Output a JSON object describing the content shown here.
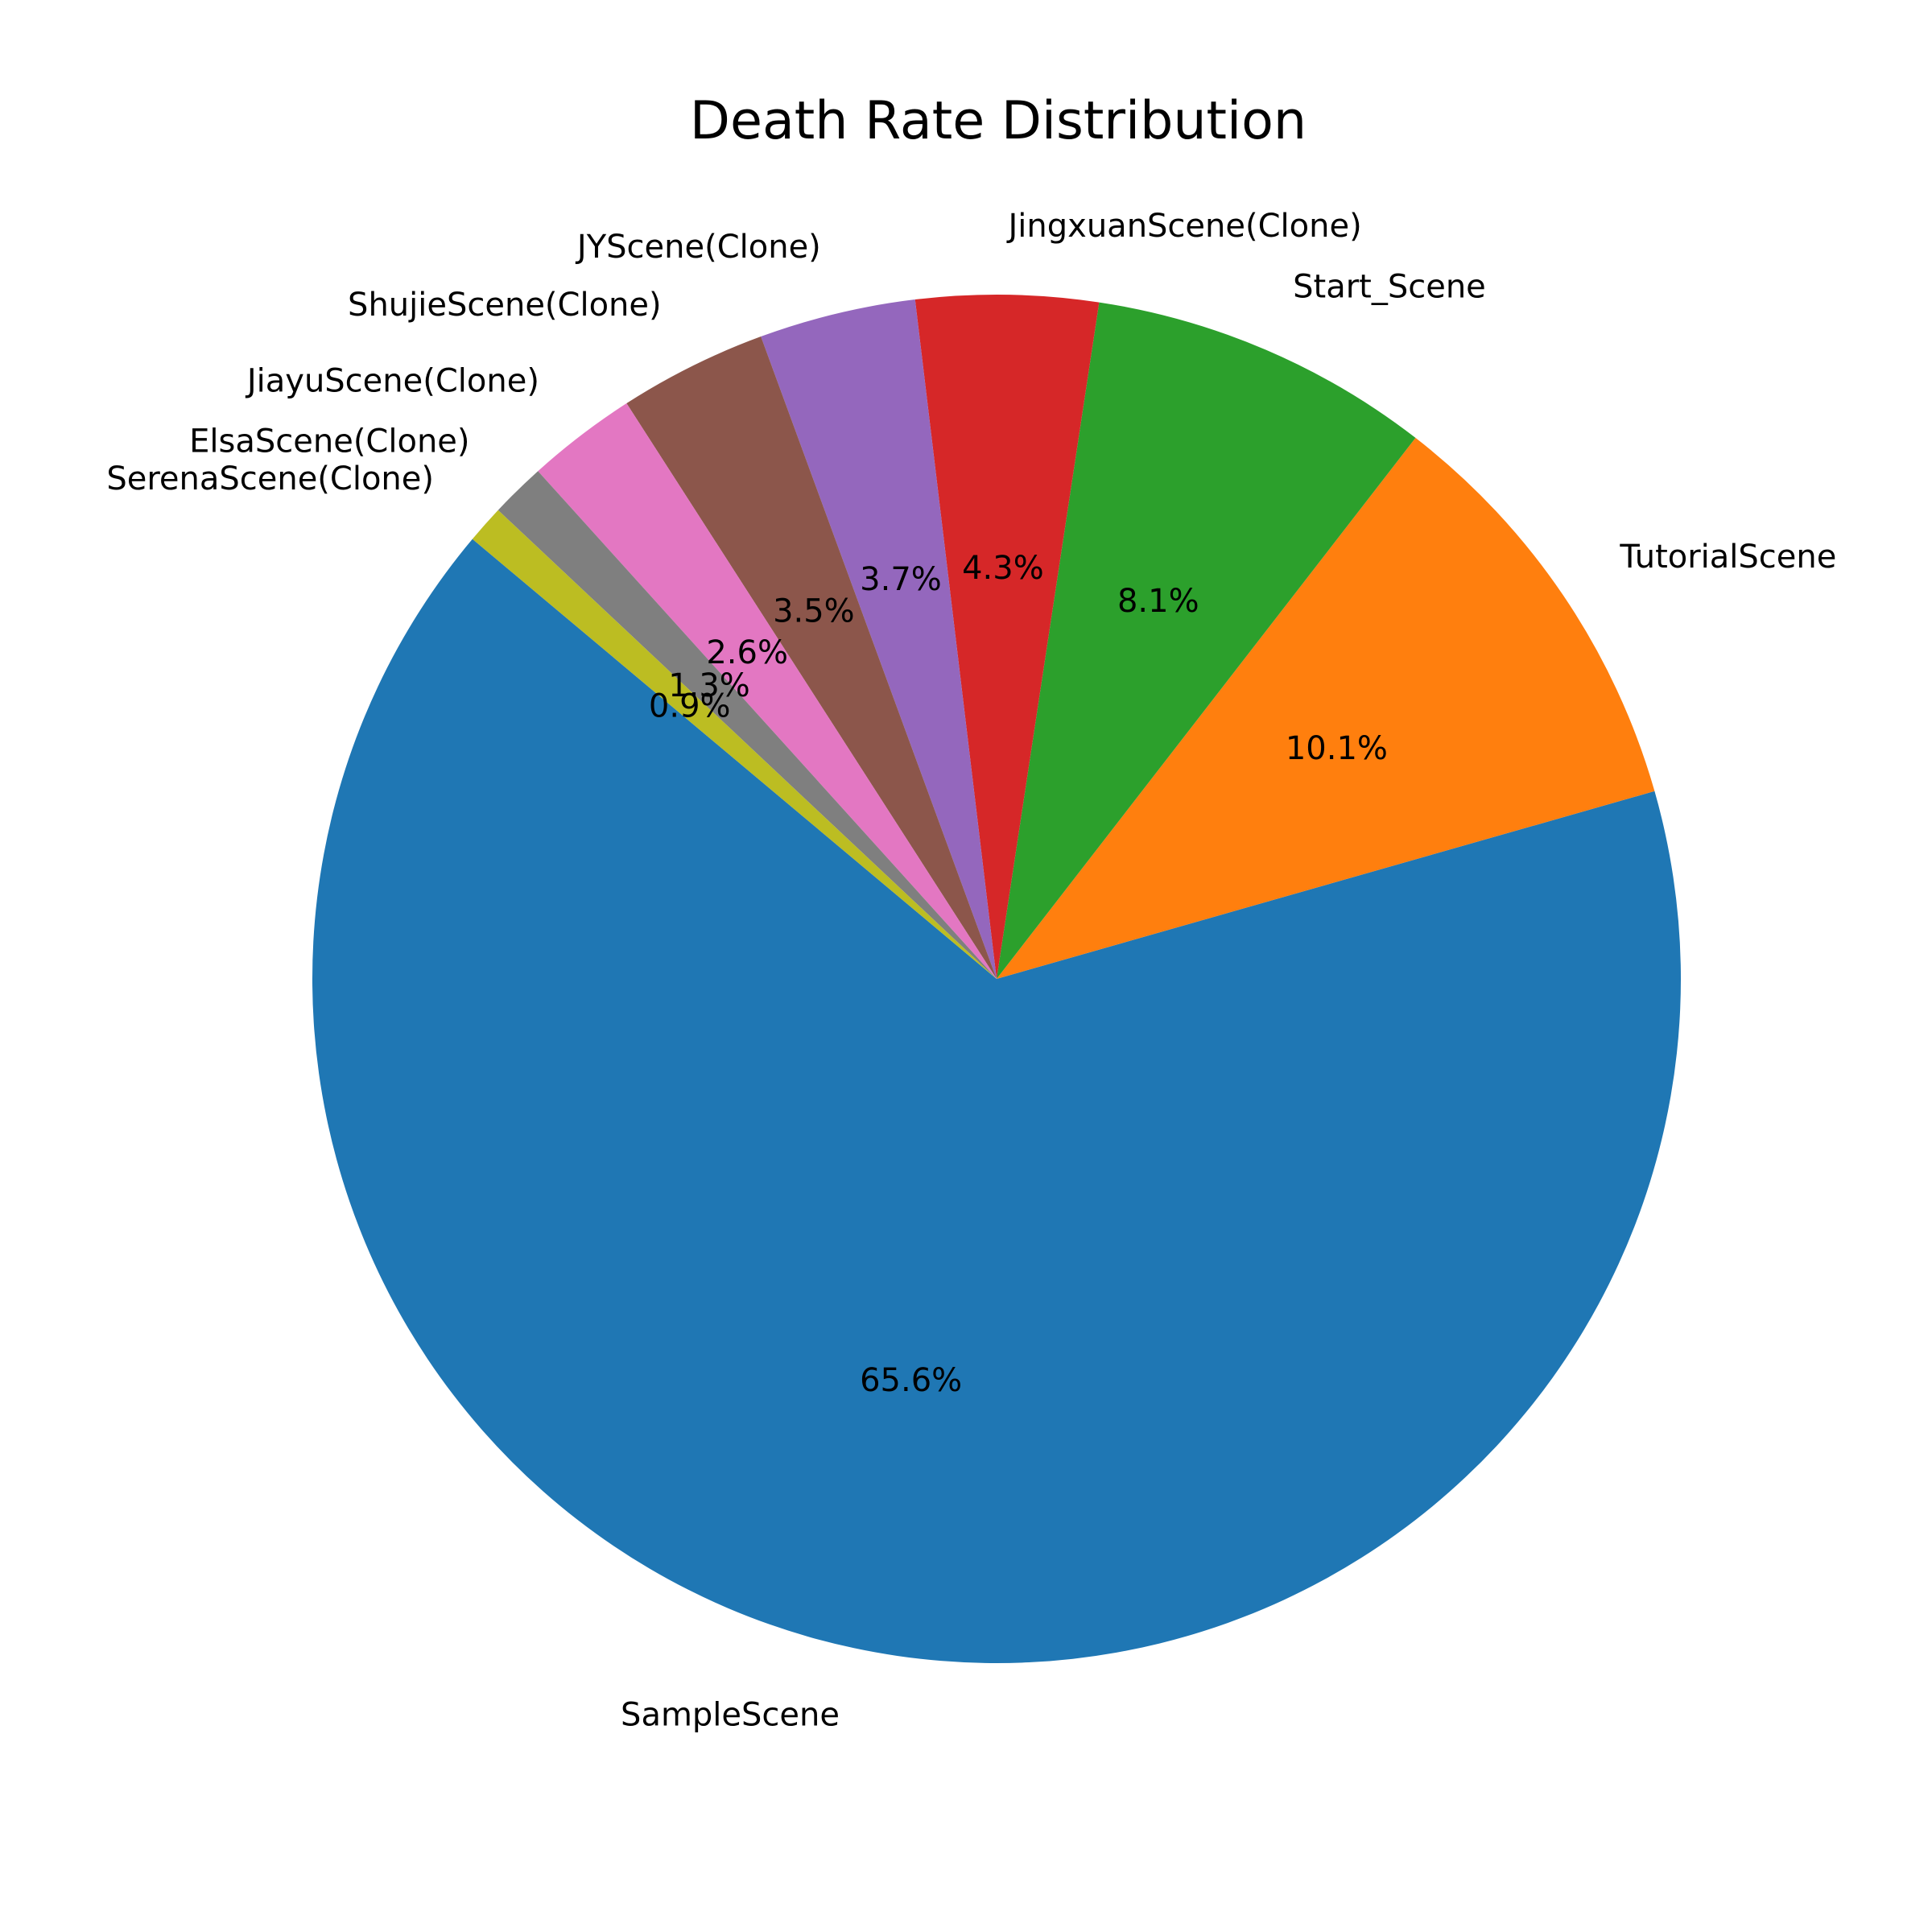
{
  "chart_data": {
    "type": "pie",
    "title": "Death Rate Distribution",
    "labels": [
      "SampleScene",
      "TutorialScene",
      "Start_Scene",
      "JingxuanScene(Clone)",
      "JYScene(Clone)",
      "ShujieScene(Clone)",
      "JiayuScene(Clone)",
      "ElsaScene(Clone)",
      "SerenaScene(Clone)"
    ],
    "values": [
      65.6,
      10.1,
      8.1,
      4.3,
      3.7,
      3.5,
      2.6,
      1.3,
      0.9
    ],
    "value_labels": [
      "65.6%",
      "10.1%",
      "8.1%",
      "4.3%",
      "3.7%",
      "3.5%",
      "2.6%",
      "1.3%",
      "0.9%"
    ],
    "colors": [
      "#1f77b4",
      "#ff7f0e",
      "#2ca02c",
      "#d62728",
      "#9467bd",
      "#8c564b",
      "#e377c2",
      "#7f7f7f",
      "#bcbd22"
    ],
    "start_angle_deg": 140,
    "direction": "counterclockwise",
    "legend": "none"
  }
}
